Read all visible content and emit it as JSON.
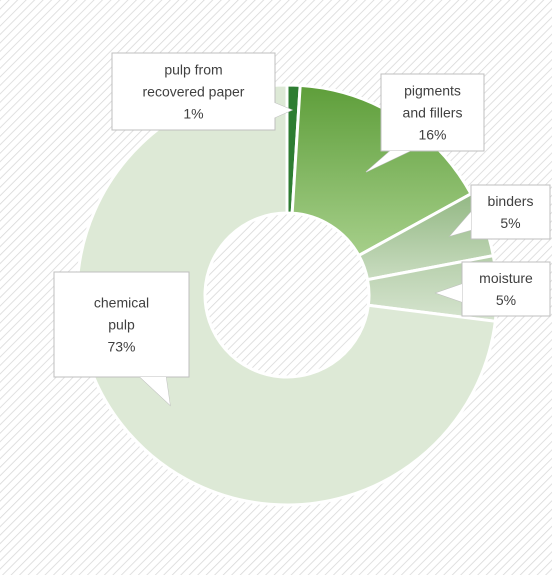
{
  "chart_data": {
    "type": "pie",
    "variant": "doughnut",
    "title": "",
    "categories": [
      "pulp from recovered paper",
      "pigments and fillers",
      "binders",
      "moisture",
      "chemical pulp"
    ],
    "values": [
      1,
      16,
      5,
      5,
      73
    ],
    "data_labels": [
      {
        "lines": [
          "pulp from",
          "recovered paper",
          "1%"
        ]
      },
      {
        "lines": [
          "pigments",
          "and fillers",
          "16%"
        ]
      },
      {
        "lines": [
          "binders",
          "5%"
        ]
      },
      {
        "lines": [
          "moisture",
          "5%"
        ]
      },
      {
        "lines": [
          "chemical",
          "pulp",
          "73%"
        ]
      }
    ],
    "colors": {
      "pulp from recovered paper": "#2e7d32",
      "pigments and fillers": "#6aaa45",
      "binders": "#a8c99a",
      "moisture": "#c4d9bd",
      "chemical pulp": "#dde9d6",
      "background_hatch": "#d9d9d9"
    },
    "legend": "none",
    "grid": false
  }
}
